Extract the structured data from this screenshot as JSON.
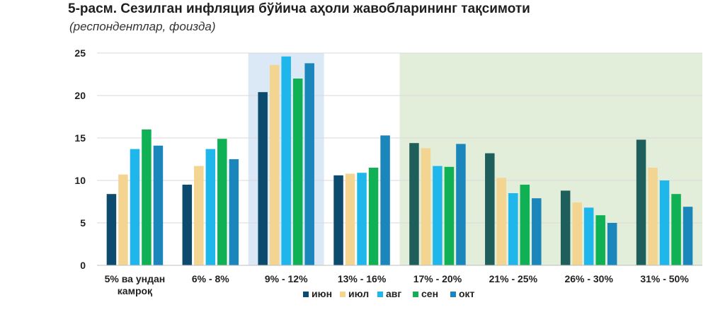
{
  "title": "5-расм. Сезилган инфляция бўйича аҳоли жавобларининг тақсимоти",
  "subtitle": "(респондентлар, фоизда)",
  "chart_data": {
    "type": "bar",
    "categories": [
      [
        "5% ва ундан",
        "камроқ"
      ],
      [
        "6% - 8%"
      ],
      [
        "9% - 12%"
      ],
      [
        "13% - 16%"
      ],
      [
        "17% - 20%"
      ],
      [
        "21% - 25%"
      ],
      [
        "26% - 30%"
      ],
      [
        "31% - 50%"
      ]
    ],
    "series": [
      {
        "name": "июн",
        "color": "#0c4a6e",
        "values": [
          8.4,
          9.5,
          20.4,
          10.6,
          14.4,
          13.2,
          8.8,
          14.8
        ]
      },
      {
        "name": "июл",
        "color": "#f3d491",
        "values": [
          10.7,
          11.7,
          23.6,
          10.8,
          13.8,
          10.3,
          7.4,
          11.5
        ]
      },
      {
        "name": "авг",
        "color": "#1fb6ec",
        "values": [
          13.7,
          13.7,
          24.6,
          10.9,
          11.7,
          8.5,
          6.8,
          10.0
        ]
      },
      {
        "name": "сен",
        "color": "#10b054",
        "values": [
          16.0,
          14.9,
          22.0,
          11.5,
          11.6,
          9.5,
          5.9,
          8.4
        ]
      },
      {
        "name": "окт",
        "color": "#1a86bb",
        "values": [
          14.1,
          12.5,
          23.8,
          15.3,
          14.3,
          7.9,
          5.0,
          6.9
        ]
      }
    ],
    "ylim": [
      0,
      25
    ],
    "yticks": [
      0,
      5,
      10,
      15,
      20,
      25
    ],
    "grid": true,
    "legend_position": "bottom-center",
    "highlight_regions": [
      {
        "from_category": 2,
        "to_category": 2,
        "color": "#dbe8f5"
      },
      {
        "from_category": 4,
        "to_category": 7,
        "color": "#e2eed9"
      }
    ],
    "green_series_color_override": {
      "from_category": 4,
      "to_category": 7,
      "series_0_color": "#1f5f5b"
    }
  }
}
